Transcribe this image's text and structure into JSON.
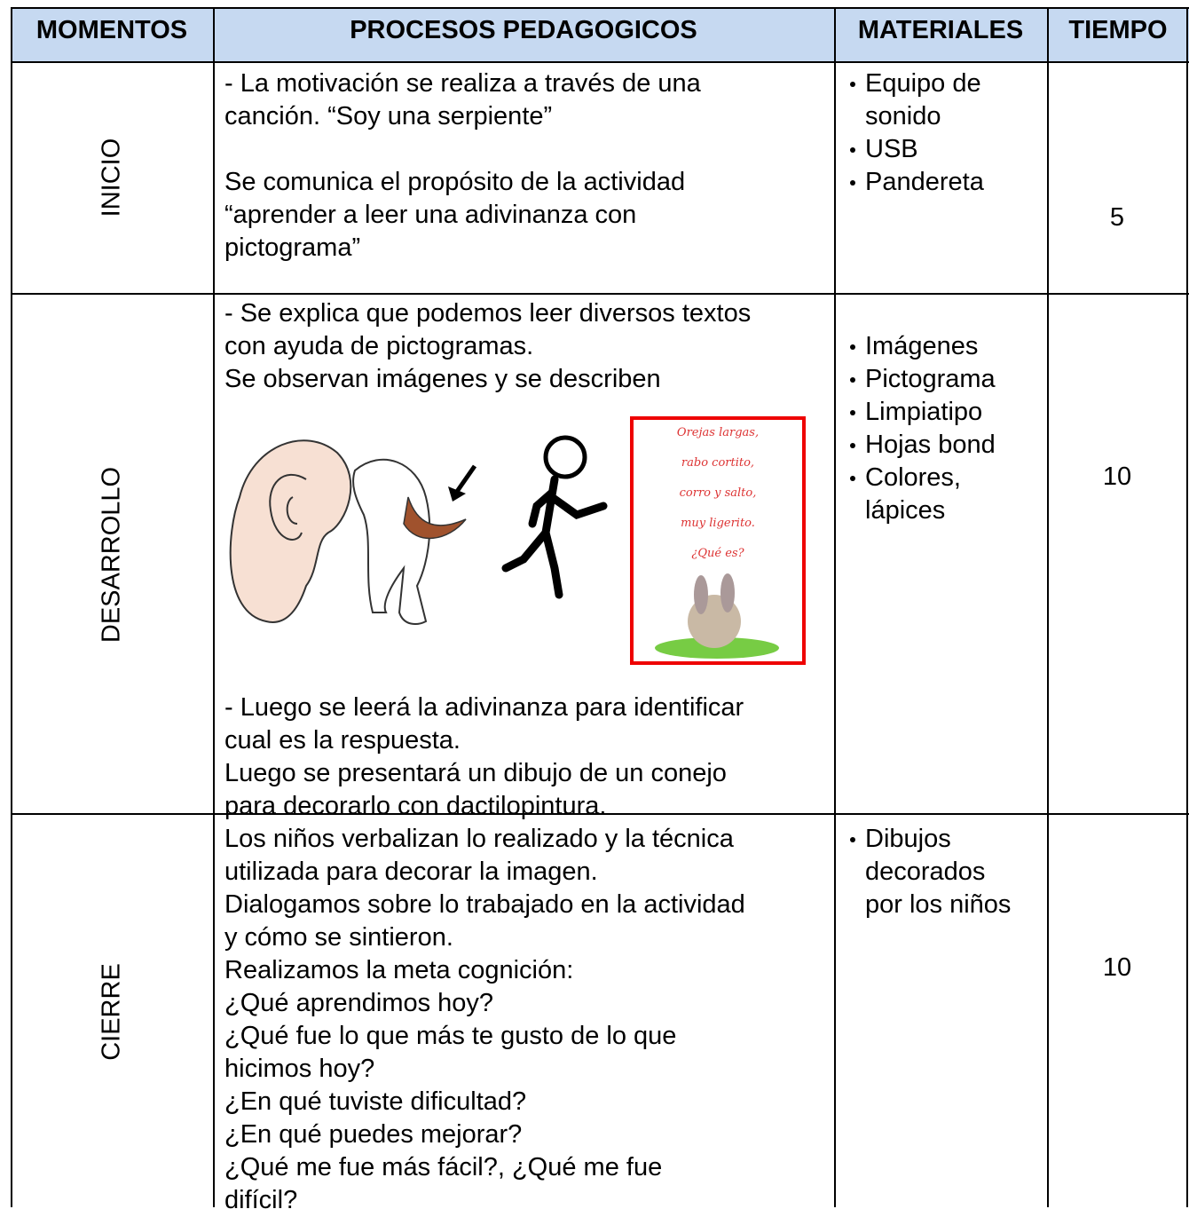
{
  "table": {
    "header": [
      "MOMENTOS",
      "PROCESOS PEDAGOGICOS",
      "MATERIALES",
      "TIEMPO"
    ],
    "rows": [
      {
        "momento": "INICIO",
        "procesos": [
          [
            "- La motivación se realiza a través de una",
            "canción. “Soy una serpiente”"
          ],
          [
            "Se comunica el propósito de la actividad",
            "“aprender a leer una adivinanza con",
            "pictograma”"
          ]
        ],
        "materiales": [
          [
            "Equipo de",
            "sonido"
          ],
          [
            "USB"
          ],
          [
            "Pandereta"
          ]
        ],
        "tiempo": 5
      },
      {
        "momento": "DESARROLLO",
        "procesos": [
          [
            "- Se explica que podemos leer diversos textos",
            "con ayuda de pictogramas.",
            "Se observan imágenes y se describen"
          ],
          [
            "- Luego se leerá la adivinanza para identificar",
            "cual es la respuesta.",
            "Luego se presentará un dibujo de un conejo",
            "para decorarlo con dactilopintura."
          ]
        ],
        "picture_card": [
          "Orejas largas,",
          "rabo cortito,",
          "corro y salto,",
          "muy ligerito.",
          "¿Qué es?"
        ],
        "materiales": [
          [
            "Imágenes"
          ],
          [
            "Pictograma"
          ],
          [
            "Limpiatipo"
          ],
          [
            "Hojas bond"
          ],
          [
            "Colores,",
            "lápices"
          ]
        ],
        "tiempo": 10
      },
      {
        "momento": "CIERRE",
        "procesos": [
          [
            "Los niños verbalizan lo realizado y la técnica",
            "utilizada para decorar la imagen.",
            "Dialogamos sobre lo trabajado en la actividad",
            "y cómo se sintieron.",
            "Realizamos la meta cognición:",
            "¿Qué aprendimos hoy?",
            "¿Qué fue lo que más te gusto de lo que",
            "hicimos hoy?",
            "¿En qué tuviste dificultad?",
            "¿En qué puedes mejorar?",
            "¿Qué me fue más fácil?, ¿Qué me fue",
            "difícil?"
          ]
        ],
        "materiales": [
          [
            "Dibujos",
            "decorados",
            "por los niños"
          ]
        ],
        "tiempo": 10
      }
    ]
  }
}
